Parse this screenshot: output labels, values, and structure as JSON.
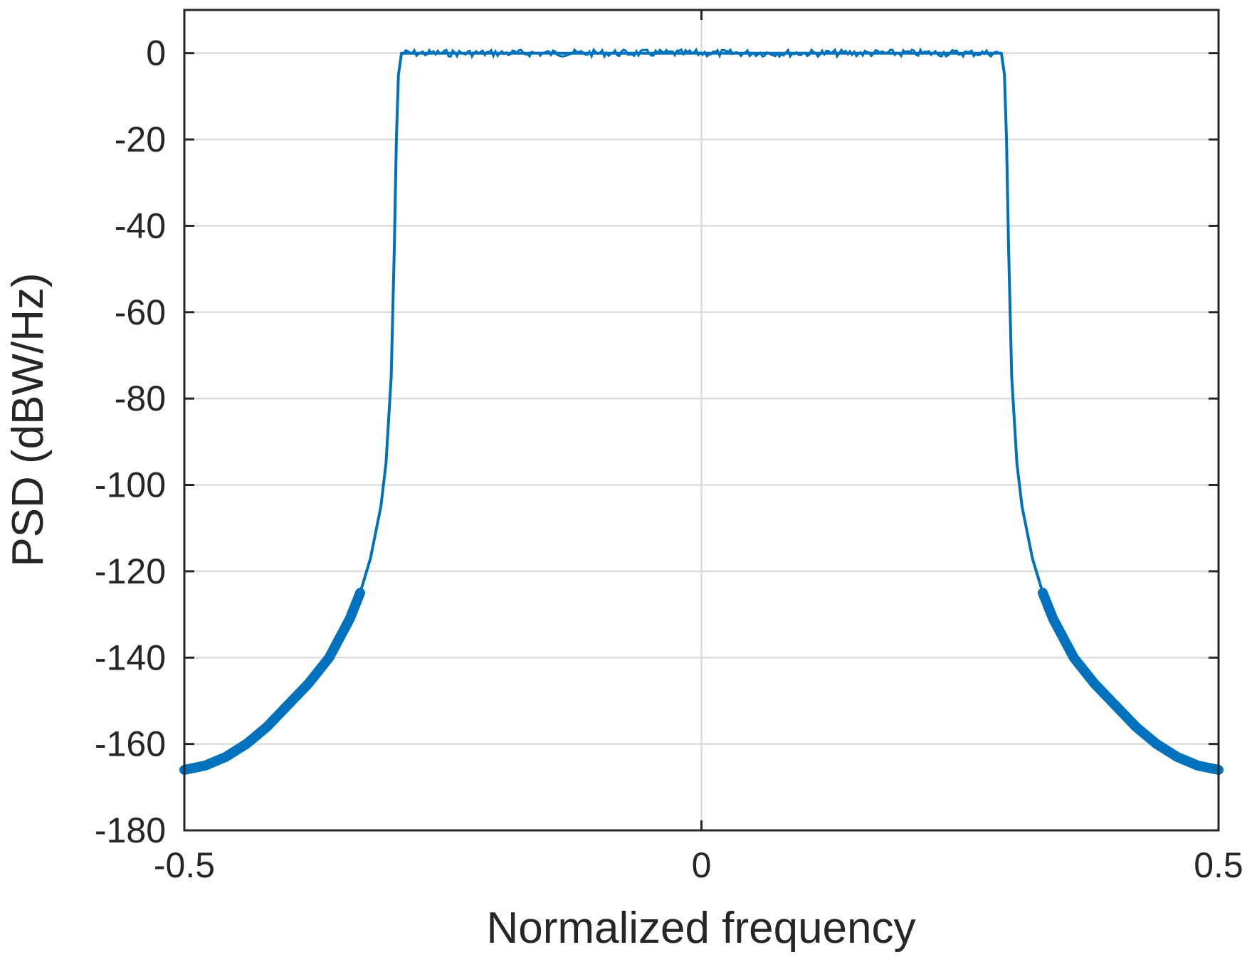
{
  "chart_data": {
    "type": "line",
    "title": "",
    "xlabel": "Normalized frequency",
    "ylabel": "PSD (dBW/Hz)",
    "xlim": [
      -0.5,
      0.5
    ],
    "ylim": [
      -180,
      10
    ],
    "x_ticks": [
      -0.5,
      0,
      0.5
    ],
    "x_tick_labels": [
      "-0.5",
      "0",
      "0.5"
    ],
    "y_ticks": [
      0,
      -20,
      -40,
      -60,
      -80,
      -100,
      -120,
      -140,
      -160,
      -180
    ],
    "y_tick_labels": [
      "0",
      "-20",
      "-40",
      "-60",
      "-80",
      "-100",
      "-120",
      "-140",
      "-160",
      "-180"
    ],
    "grid": true,
    "legend": false,
    "color": "#0072BD",
    "series": [
      {
        "x": [
          -0.5,
          -0.48,
          -0.46,
          -0.44,
          -0.42,
          -0.4,
          -0.38,
          -0.36,
          -0.34,
          -0.33,
          -0.32,
          -0.31,
          -0.305,
          -0.3,
          -0.297,
          -0.295,
          -0.293,
          -0.29,
          0.29,
          0.293,
          0.295,
          0.297,
          0.3,
          0.305,
          0.31,
          0.32,
          0.33,
          0.34,
          0.36,
          0.38,
          0.4,
          0.42,
          0.44,
          0.46,
          0.48,
          0.5
        ],
        "y": [
          -166,
          -165,
          -163,
          -160,
          -156,
          -151,
          -146,
          -140,
          -131,
          -125,
          -117,
          -105,
          -95,
          -75,
          -45,
          -20,
          -5,
          0,
          0,
          -5,
          -20,
          -45,
          -75,
          -95,
          -105,
          -117,
          -125,
          -131,
          -140,
          -146,
          -151,
          -156,
          -160,
          -163,
          -165,
          -166
        ]
      }
    ]
  }
}
